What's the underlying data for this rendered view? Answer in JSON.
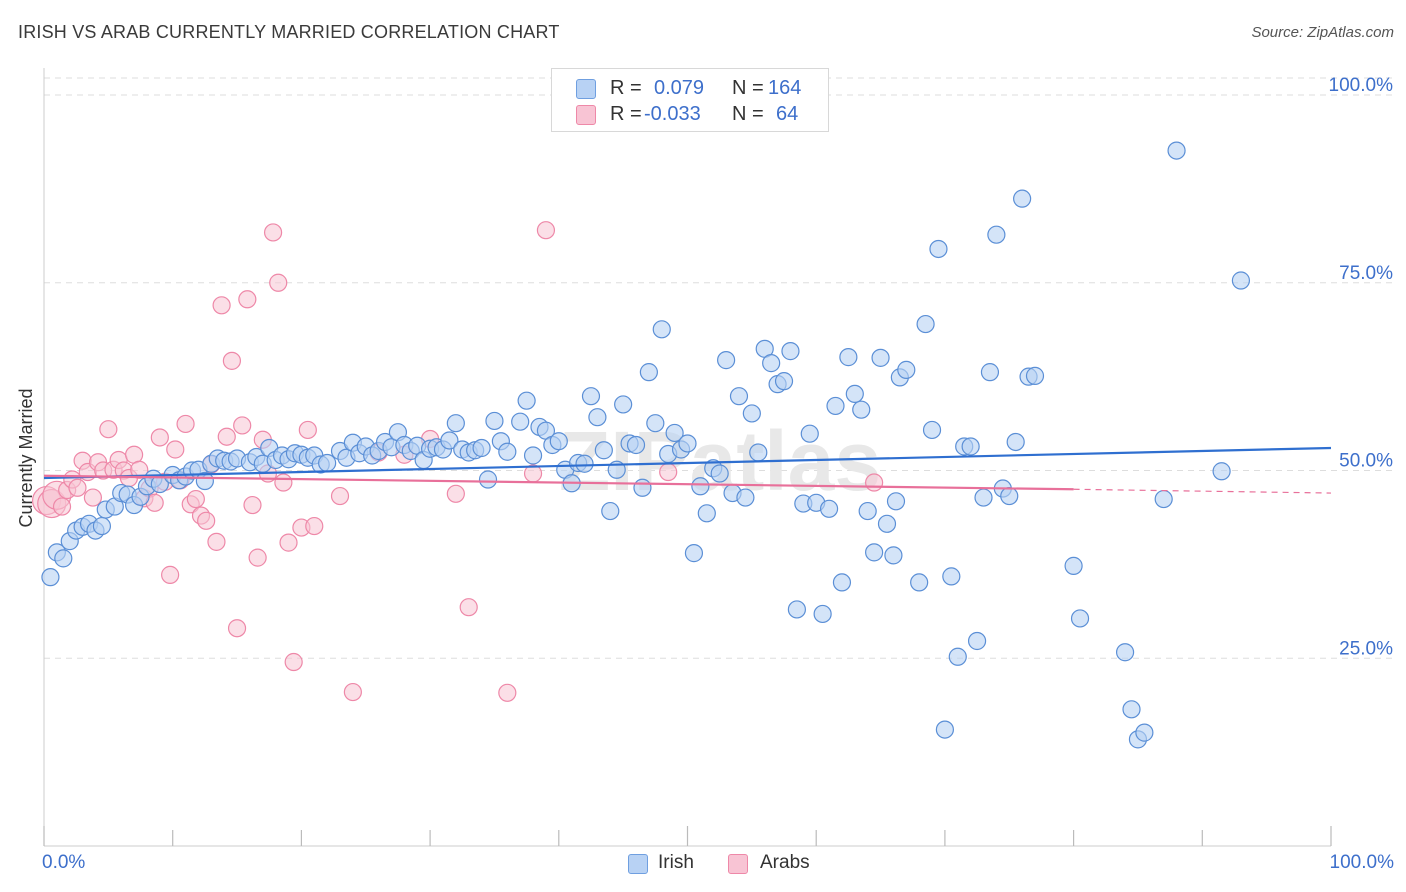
{
  "title": "IRISH VS ARAB CURRENTLY MARRIED CORRELATION CHART",
  "source": "Source: ZipAtlas.com",
  "watermark": "ZIPatlas",
  "legend": {
    "rows": [
      {
        "r_label": "R =",
        "r_value": "0.079",
        "n_label": "N =",
        "n_value": "164",
        "color": "#6f9fe0"
      },
      {
        "r_label": "R =",
        "r_value": "-0.033",
        "n_label": "N =",
        "n_value": "64",
        "color": "#f08aac"
      }
    ]
  },
  "colors": {
    "irish_fill": "#b8d2f4",
    "irish_stroke": "#5b8fd6",
    "irish_line": "#2f6fd0",
    "arab_fill": "#f8c4d4",
    "arab_stroke": "#ee88a8",
    "arab_line": "#e8709a",
    "axis_text": "#3d6fcb",
    "grid": "#dddddd"
  },
  "chart_data": {
    "type": "scatter",
    "title": "IRISH VS ARAB CURRENTLY MARRIED CORRELATION CHART",
    "xlabel": "",
    "ylabel": "Currently Married",
    "xlim": [
      0,
      100
    ],
    "ylim": [
      0,
      102
    ],
    "x_tick_labels": [
      "0.0%",
      "100.0%"
    ],
    "y_tick_labels": [
      "25.0%",
      "50.0%",
      "75.0%",
      "100.0%"
    ],
    "y_ticks": [
      25,
      50,
      75,
      100
    ],
    "grid": true,
    "legend_position": "top-center",
    "series": [
      {
        "name": "Irish",
        "r": 0.079,
        "n": 164,
        "trend": {
          "x": [
            0,
            100
          ],
          "y": [
            49.0,
            53.0
          ]
        },
        "points": [
          [
            0.5,
            35.8
          ],
          [
            1,
            39.1
          ],
          [
            1.5,
            38.3
          ],
          [
            2,
            40.6
          ],
          [
            2.5,
            42.0
          ],
          [
            3,
            42.5
          ],
          [
            3.5,
            42.9
          ],
          [
            4,
            42.0
          ],
          [
            4.5,
            42.6
          ],
          [
            4.8,
            44.8
          ],
          [
            5.5,
            45.2
          ],
          [
            6,
            47.0
          ],
          [
            6.5,
            46.8
          ],
          [
            7,
            45.4
          ],
          [
            7.5,
            46.5
          ],
          [
            8,
            47.9
          ],
          [
            8.5,
            48.9
          ],
          [
            9,
            48.2
          ],
          [
            10,
            49.4
          ],
          [
            10.5,
            48.7
          ],
          [
            11,
            49.2
          ],
          [
            11.5,
            50.0
          ],
          [
            12,
            50.1
          ],
          [
            12.5,
            48.6
          ],
          [
            13,
            50.9
          ],
          [
            13.5,
            51.6
          ],
          [
            14,
            51.3
          ],
          [
            14.5,
            51.2
          ],
          [
            15,
            51.6
          ],
          [
            16,
            51.1
          ],
          [
            16.5,
            51.8
          ],
          [
            17,
            50.9
          ],
          [
            17.5,
            53.0
          ],
          [
            18,
            51.4
          ],
          [
            18.5,
            52.0
          ],
          [
            19,
            51.5
          ],
          [
            19.5,
            52.3
          ],
          [
            20,
            52.1
          ],
          [
            20.5,
            51.7
          ],
          [
            21,
            52.0
          ],
          [
            21.5,
            50.8
          ],
          [
            22,
            51.0
          ],
          [
            23,
            52.6
          ],
          [
            23.5,
            51.7
          ],
          [
            24,
            53.7
          ],
          [
            24.5,
            52.3
          ],
          [
            25,
            53.2
          ],
          [
            25.5,
            52.0
          ],
          [
            26,
            52.6
          ],
          [
            26.5,
            53.8
          ],
          [
            27,
            53.1
          ],
          [
            27.5,
            55.1
          ],
          [
            28,
            53.4
          ],
          [
            28.5,
            52.6
          ],
          [
            29,
            53.3
          ],
          [
            29.5,
            51.4
          ],
          [
            30,
            52.9
          ],
          [
            30.5,
            53.1
          ],
          [
            31,
            52.8
          ],
          [
            31.5,
            54.0
          ],
          [
            32,
            56.3
          ],
          [
            32.5,
            52.8
          ],
          [
            33,
            52.4
          ],
          [
            33.5,
            52.7
          ],
          [
            34,
            53.0
          ],
          [
            35,
            56.6
          ],
          [
            34.5,
            48.8
          ],
          [
            35.5,
            53.9
          ],
          [
            36,
            52.5
          ],
          [
            37,
            56.5
          ],
          [
            37.5,
            59.3
          ],
          [
            38,
            52.0
          ],
          [
            38.5,
            55.8
          ],
          [
            39,
            55.3
          ],
          [
            39.5,
            53.4
          ],
          [
            40,
            53.9
          ],
          [
            40.5,
            50.1
          ],
          [
            41,
            48.3
          ],
          [
            41.5,
            51.0
          ],
          [
            42,
            50.9
          ],
          [
            42.5,
            59.9
          ],
          [
            43,
            57.1
          ],
          [
            43.5,
            52.7
          ],
          [
            44,
            44.6
          ],
          [
            44.5,
            50.1
          ],
          [
            45,
            58.8
          ],
          [
            45.5,
            53.6
          ],
          [
            46,
            53.4
          ],
          [
            46.5,
            47.7
          ],
          [
            47,
            63.1
          ],
          [
            47.5,
            56.3
          ],
          [
            48,
            68.8
          ],
          [
            48.5,
            52.2
          ],
          [
            49,
            55.0
          ],
          [
            49.5,
            52.8
          ],
          [
            50,
            53.6
          ],
          [
            50.5,
            39.0
          ],
          [
            51,
            47.9
          ],
          [
            51.5,
            44.3
          ],
          [
            52,
            50.3
          ],
          [
            52.5,
            49.6
          ],
          [
            53,
            64.7
          ],
          [
            53.5,
            47.0
          ],
          [
            54,
            59.9
          ],
          [
            54.5,
            46.4
          ],
          [
            55,
            57.6
          ],
          [
            55.5,
            52.4
          ],
          [
            56,
            66.2
          ],
          [
            56.5,
            64.3
          ],
          [
            57,
            61.5
          ],
          [
            57.5,
            61.9
          ],
          [
            58,
            65.9
          ],
          [
            58.5,
            31.5
          ],
          [
            59,
            45.6
          ],
          [
            59.5,
            54.9
          ],
          [
            60,
            45.7
          ],
          [
            60.5,
            30.9
          ],
          [
            61,
            44.9
          ],
          [
            61.5,
            58.6
          ],
          [
            62,
            35.1
          ],
          [
            62.5,
            65.1
          ],
          [
            63,
            60.2
          ],
          [
            63.5,
            58.1
          ],
          [
            64,
            44.6
          ],
          [
            64.5,
            39.1
          ],
          [
            65,
            65.0
          ],
          [
            65.5,
            42.9
          ],
          [
            66,
            38.7
          ],
          [
            66.5,
            62.4
          ],
          [
            67,
            63.4
          ],
          [
            68,
            35.1
          ],
          [
            68.5,
            69.5
          ],
          [
            69,
            55.4
          ],
          [
            69.5,
            79.5
          ],
          [
            70,
            15.5
          ],
          [
            70.5,
            35.9
          ],
          [
            71,
            25.2
          ],
          [
            71.5,
            53.2
          ],
          [
            72,
            53.2
          ],
          [
            72.5,
            27.3
          ],
          [
            73,
            46.4
          ],
          [
            73.5,
            63.1
          ],
          [
            74,
            81.4
          ],
          [
            74.5,
            47.6
          ],
          [
            75,
            46.6
          ],
          [
            75.5,
            53.8
          ],
          [
            76,
            86.2
          ],
          [
            76.5,
            62.5
          ],
          [
            77,
            62.6
          ],
          [
            80,
            37.3
          ],
          [
            80.5,
            30.3
          ],
          [
            84,
            25.8
          ],
          [
            84.5,
            18.2
          ],
          [
            85,
            14.2
          ],
          [
            85.5,
            15.1
          ],
          [
            87,
            46.2
          ],
          [
            88,
            92.6
          ],
          [
            91.5,
            49.9
          ],
          [
            93,
            75.3
          ],
          [
            66.2,
            45.9
          ]
        ]
      },
      {
        "name": "Arabs",
        "r": -0.033,
        "n": 64,
        "trend": {
          "x": [
            0,
            80
          ],
          "y": [
            49.3,
            47.5
          ]
        },
        "trend_dashed": {
          "x": [
            80,
            100
          ],
          "y": [
            47.5,
            47.0
          ]
        },
        "points": [
          [
            0.2,
            46.0
          ],
          [
            0.6,
            45.6
          ],
          [
            1,
            46.7
          ],
          [
            1.4,
            45.2
          ],
          [
            1.8,
            47.4
          ],
          [
            2.2,
            48.8
          ],
          [
            2.6,
            47.7
          ],
          [
            3,
            51.3
          ],
          [
            3.4,
            49.8
          ],
          [
            3.8,
            46.4
          ],
          [
            4.2,
            51.1
          ],
          [
            4.6,
            50.0
          ],
          [
            5,
            55.5
          ],
          [
            5.4,
            50.1
          ],
          [
            5.8,
            51.4
          ],
          [
            6.2,
            50.0
          ],
          [
            6.6,
            49.0
          ],
          [
            7,
            52.1
          ],
          [
            7.4,
            50.1
          ],
          [
            7.8,
            46.3
          ],
          [
            8.2,
            47.6
          ],
          [
            8.6,
            45.7
          ],
          [
            9,
            54.4
          ],
          [
            9.4,
            48.5
          ],
          [
            9.8,
            36.1
          ],
          [
            10.2,
            52.8
          ],
          [
            10.6,
            48.7
          ],
          [
            11,
            56.2
          ],
          [
            11.4,
            45.5
          ],
          [
            11.8,
            46.2
          ],
          [
            12.2,
            44.0
          ],
          [
            12.6,
            43.3
          ],
          [
            13,
            50.8
          ],
          [
            13.4,
            40.5
          ],
          [
            13.8,
            72.0
          ],
          [
            14.2,
            54.5
          ],
          [
            14.6,
            64.6
          ],
          [
            15,
            29.0
          ],
          [
            15.4,
            56.0
          ],
          [
            15.8,
            72.8
          ],
          [
            16.2,
            45.4
          ],
          [
            16.6,
            38.4
          ],
          [
            17,
            54.1
          ],
          [
            17.4,
            49.6
          ],
          [
            17.8,
            81.7
          ],
          [
            18.2,
            75.0
          ],
          [
            18.6,
            48.4
          ],
          [
            19,
            40.4
          ],
          [
            19.4,
            24.5
          ],
          [
            20,
            42.4
          ],
          [
            20.5,
            55.4
          ],
          [
            21,
            42.6
          ],
          [
            23,
            46.6
          ],
          [
            24,
            20.5
          ],
          [
            26,
            52.4
          ],
          [
            28,
            52.1
          ],
          [
            30,
            54.2
          ],
          [
            32,
            46.9
          ],
          [
            33,
            31.8
          ],
          [
            36,
            20.4
          ],
          [
            38,
            49.6
          ],
          [
            39,
            82.0
          ],
          [
            48.5,
            49.8
          ],
          [
            64.5,
            48.4
          ]
        ]
      }
    ]
  },
  "legend_bottom": [
    {
      "label": "Irish",
      "color": "#b8d2f4"
    },
    {
      "label": "Arabs",
      "color": "#f8c4d4"
    }
  ]
}
